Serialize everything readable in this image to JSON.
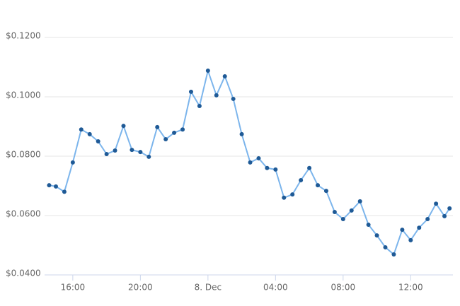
{
  "chart_data": {
    "type": "line",
    "x": [
      14.6,
      15,
      15.5,
      16,
      16.5,
      17,
      17.5,
      18,
      18.5,
      19,
      19.5,
      20,
      20.5,
      21,
      21.5,
      22,
      22.5,
      23,
      23.5,
      24,
      24.5,
      25,
      25.5,
      26,
      26.5,
      27,
      27.5,
      28,
      28.5,
      29,
      29.5,
      30,
      30.5,
      31,
      31.5,
      32,
      32.5,
      33,
      33.5,
      34,
      34.5,
      35,
      35.5,
      36,
      36.5,
      37,
      37.5,
      38,
      38.3
    ],
    "series": [
      {
        "color": "#7cb5ec",
        "marker_color": "#1f5a96",
        "values": [
          0.0702,
          0.0698,
          0.068,
          0.0779,
          0.089,
          0.0874,
          0.085,
          0.0807,
          0.0819,
          0.0902,
          0.0821,
          0.0814,
          0.0798,
          0.0898,
          0.0857,
          0.0879,
          0.089,
          0.1017,
          0.0969,
          0.1088,
          0.1005,
          0.1069,
          0.0993,
          0.0874,
          0.0779,
          0.0793,
          0.076,
          0.0755,
          0.066,
          0.0671,
          0.0719,
          0.076,
          0.0702,
          0.0683,
          0.0612,
          0.0588,
          0.0617,
          0.0648,
          0.0569,
          0.0533,
          0.0493,
          0.0469,
          0.0552,
          0.0517,
          0.0559,
          0.0588,
          0.064,
          0.0598,
          0.0624
        ]
      }
    ],
    "xlim": [
      14.33,
      38.5
    ],
    "xticks": [
      {
        "value": 16,
        "label": "16:00"
      },
      {
        "value": 20,
        "label": "20:00"
      },
      {
        "value": 24,
        "label": "8. Dec"
      },
      {
        "value": 28,
        "label": "04:00"
      },
      {
        "value": 32,
        "label": "08:00"
      },
      {
        "value": 36,
        "label": "12:00"
      }
    ],
    "ylim": [
      0.04,
      0.12
    ],
    "yticks": [
      {
        "value": 0.04,
        "label": "$0.0400"
      },
      {
        "value": 0.06,
        "label": "$0.0600"
      },
      {
        "value": 0.08,
        "label": "$0.0800"
      },
      {
        "value": 0.1,
        "label": "$0.1000"
      },
      {
        "value": 0.12,
        "label": "$0.1200"
      }
    ],
    "grid": true
  }
}
